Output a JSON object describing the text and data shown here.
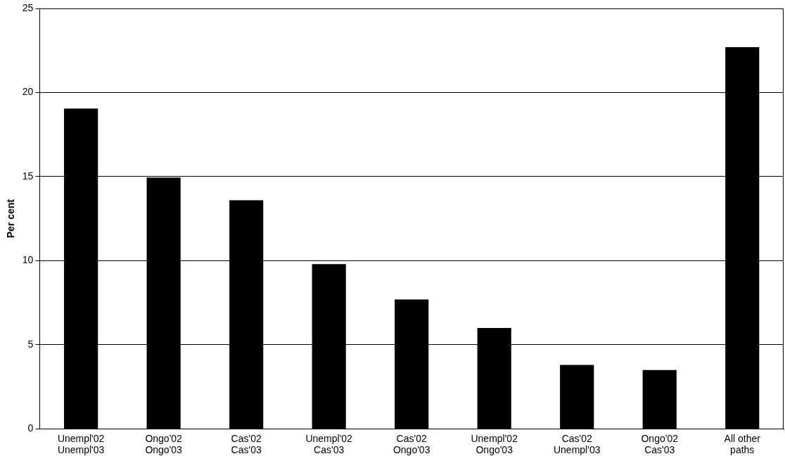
{
  "chart_data": {
    "type": "bar",
    "ylabel": "Per cent",
    "categories": [
      "Unempl'02\nUnempl'03",
      "Ongo'02\nOngo'03",
      "Cas'02\nCas'03",
      "Unempl'02\nCas'03",
      "Cas'02\nOngo'03",
      "Unempl'02\nOngo'03",
      "Cas'02\nUnempl'03",
      "Ongo'02\nCas'03",
      "All other\npaths"
    ],
    "values": [
      19.05,
      14.95,
      13.6,
      9.8,
      7.7,
      6.0,
      3.8,
      3.5,
      22.7
    ],
    "color": "#000000",
    "ylim": [
      0,
      25
    ],
    "yticks": [
      0,
      5,
      10,
      15,
      20,
      25
    ],
    "grid": "y",
    "legend": false
  }
}
